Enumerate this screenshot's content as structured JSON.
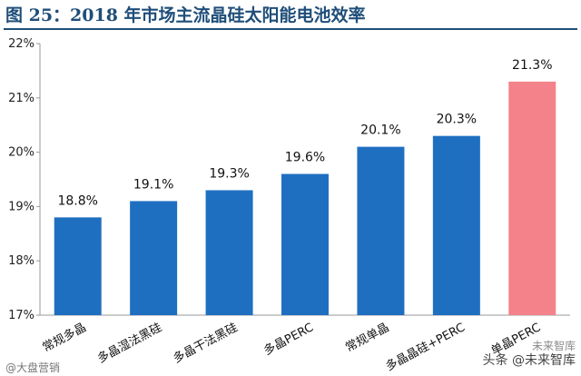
{
  "header": {
    "title": "图 25：2018 年市场主流晶硅太阳能电池效率"
  },
  "watermarks": {
    "bottom_left": "@大盘营销",
    "bottom_right": "头条 @未来智库",
    "bottom_right_small": "未来智库"
  },
  "colors": {
    "bar_default": "#1f6fc1",
    "bar_highlight": "#f4828a",
    "title": "#1f4e79"
  },
  "chart_data": {
    "type": "bar",
    "title": "图 25：2018 年市场主流晶硅太阳能电池效率",
    "xlabel": "",
    "ylabel": "",
    "categories": [
      "常规多晶",
      "多晶湿法黑硅",
      "多晶干法黑硅",
      "多晶PERC",
      "常规单晶",
      "多晶晶硅+PERC",
      "单晶PERC"
    ],
    "values": [
      18.8,
      19.1,
      19.3,
      19.6,
      20.1,
      20.3,
      21.3
    ],
    "data_labels": [
      "18.8%",
      "19.1%",
      "19.3%",
      "19.6%",
      "20.1%",
      "20.3%",
      "21.3%"
    ],
    "highlight_index": 6,
    "ylim": [
      17,
      22
    ],
    "yticks": [
      17,
      18,
      19,
      20,
      21,
      22
    ],
    "ytick_labels": [
      "17%",
      "18%",
      "19%",
      "20%",
      "21%",
      "22%"
    ],
    "grid": false,
    "legend": "none"
  }
}
